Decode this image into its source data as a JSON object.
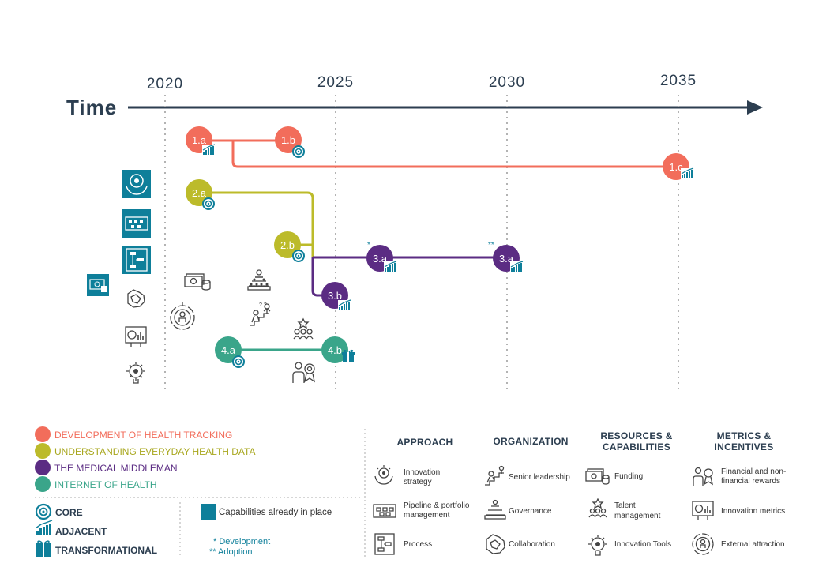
{
  "timeline": {
    "axis_label": "Time",
    "years": [
      "2020",
      "2025",
      "2030",
      "2035"
    ]
  },
  "colors": {
    "health_tracking": "#f26d5b",
    "everyday_data": "#bcbb2a",
    "middleman": "#5b2c83",
    "internet_of_health": "#3aa58a",
    "teal": "#0e7f9a",
    "axis": "#2c3e50"
  },
  "nodes": [
    {
      "id": "1.a",
      "label": "1.a",
      "type": "adjacent"
    },
    {
      "id": "1.b",
      "label": "1.b",
      "type": "core"
    },
    {
      "id": "1.c",
      "label": "1.c",
      "type": "adjacent"
    },
    {
      "id": "2.a",
      "label": "2.a",
      "type": "core"
    },
    {
      "id": "2.b",
      "label": "2.b",
      "type": "core"
    },
    {
      "id": "3.a1",
      "label": "3.a",
      "type": "adjacent",
      "marker": "*"
    },
    {
      "id": "3.a2",
      "label": "3.a",
      "type": "adjacent",
      "marker": "**"
    },
    {
      "id": "3.b",
      "label": "3.b",
      "type": "adjacent"
    },
    {
      "id": "4.a",
      "label": "4.a",
      "type": "core"
    },
    {
      "id": "4.b",
      "label": "4.b",
      "type": "transformational"
    }
  ],
  "legend": {
    "themes": [
      {
        "label": "DEVELOPMENT OF HEALTH TRACKING",
        "color": "#f26d5b"
      },
      {
        "label": "UNDERSTANDING EVERYDAY HEALTH DATA",
        "color": "#bcbb2a"
      },
      {
        "label": "THE MEDICAL MIDDLEMAN",
        "color": "#5b2c83"
      },
      {
        "label": "INTERNET OF HEALTH",
        "color": "#3aa58a"
      }
    ],
    "types": [
      {
        "label": "CORE",
        "icon": "target-icon"
      },
      {
        "label": "ADJACENT",
        "icon": "growth-chart-icon"
      },
      {
        "label": "TRANSFORMATIONAL",
        "icon": "gift-icon"
      }
    ],
    "in_place": "Capabilities already in place",
    "development": "* Development",
    "adoption": "** Adoption"
  },
  "categories": [
    {
      "title": [
        "APPROACH"
      ],
      "items": [
        {
          "label": [
            "Innovation",
            "strategy"
          ],
          "icon": "innovation-strategy-icon"
        },
        {
          "label": [
            "Pipeline & portfolio",
            "management"
          ],
          "icon": "pipeline-icon"
        },
        {
          "label": [
            "Process"
          ],
          "icon": "process-icon"
        }
      ]
    },
    {
      "title": [
        "ORGANIZATION"
      ],
      "items": [
        {
          "label": [
            "Senior leadership"
          ],
          "icon": "senior-leadership-icon"
        },
        {
          "label": [
            "Governance"
          ],
          "icon": "governance-icon"
        },
        {
          "label": [
            "Collaboration"
          ],
          "icon": "collaboration-icon"
        }
      ]
    },
    {
      "title": [
        "RESOURCES &",
        "CAPABILITIES"
      ],
      "items": [
        {
          "label": [
            "Funding"
          ],
          "icon": "funding-icon"
        },
        {
          "label": [
            "Talent",
            "management"
          ],
          "icon": "talent-icon"
        },
        {
          "label": [
            "Innovation Tools"
          ],
          "icon": "innovation-tools-icon"
        }
      ]
    },
    {
      "title": [
        "METRICS &",
        "INCENTIVES"
      ],
      "items": [
        {
          "label": [
            "Financial and non-",
            "financial rewards"
          ],
          "icon": "rewards-icon"
        },
        {
          "label": [
            "Innovation metrics"
          ],
          "icon": "metrics-icon"
        },
        {
          "label": [
            "External attraction"
          ],
          "icon": "attraction-icon"
        }
      ]
    }
  ]
}
